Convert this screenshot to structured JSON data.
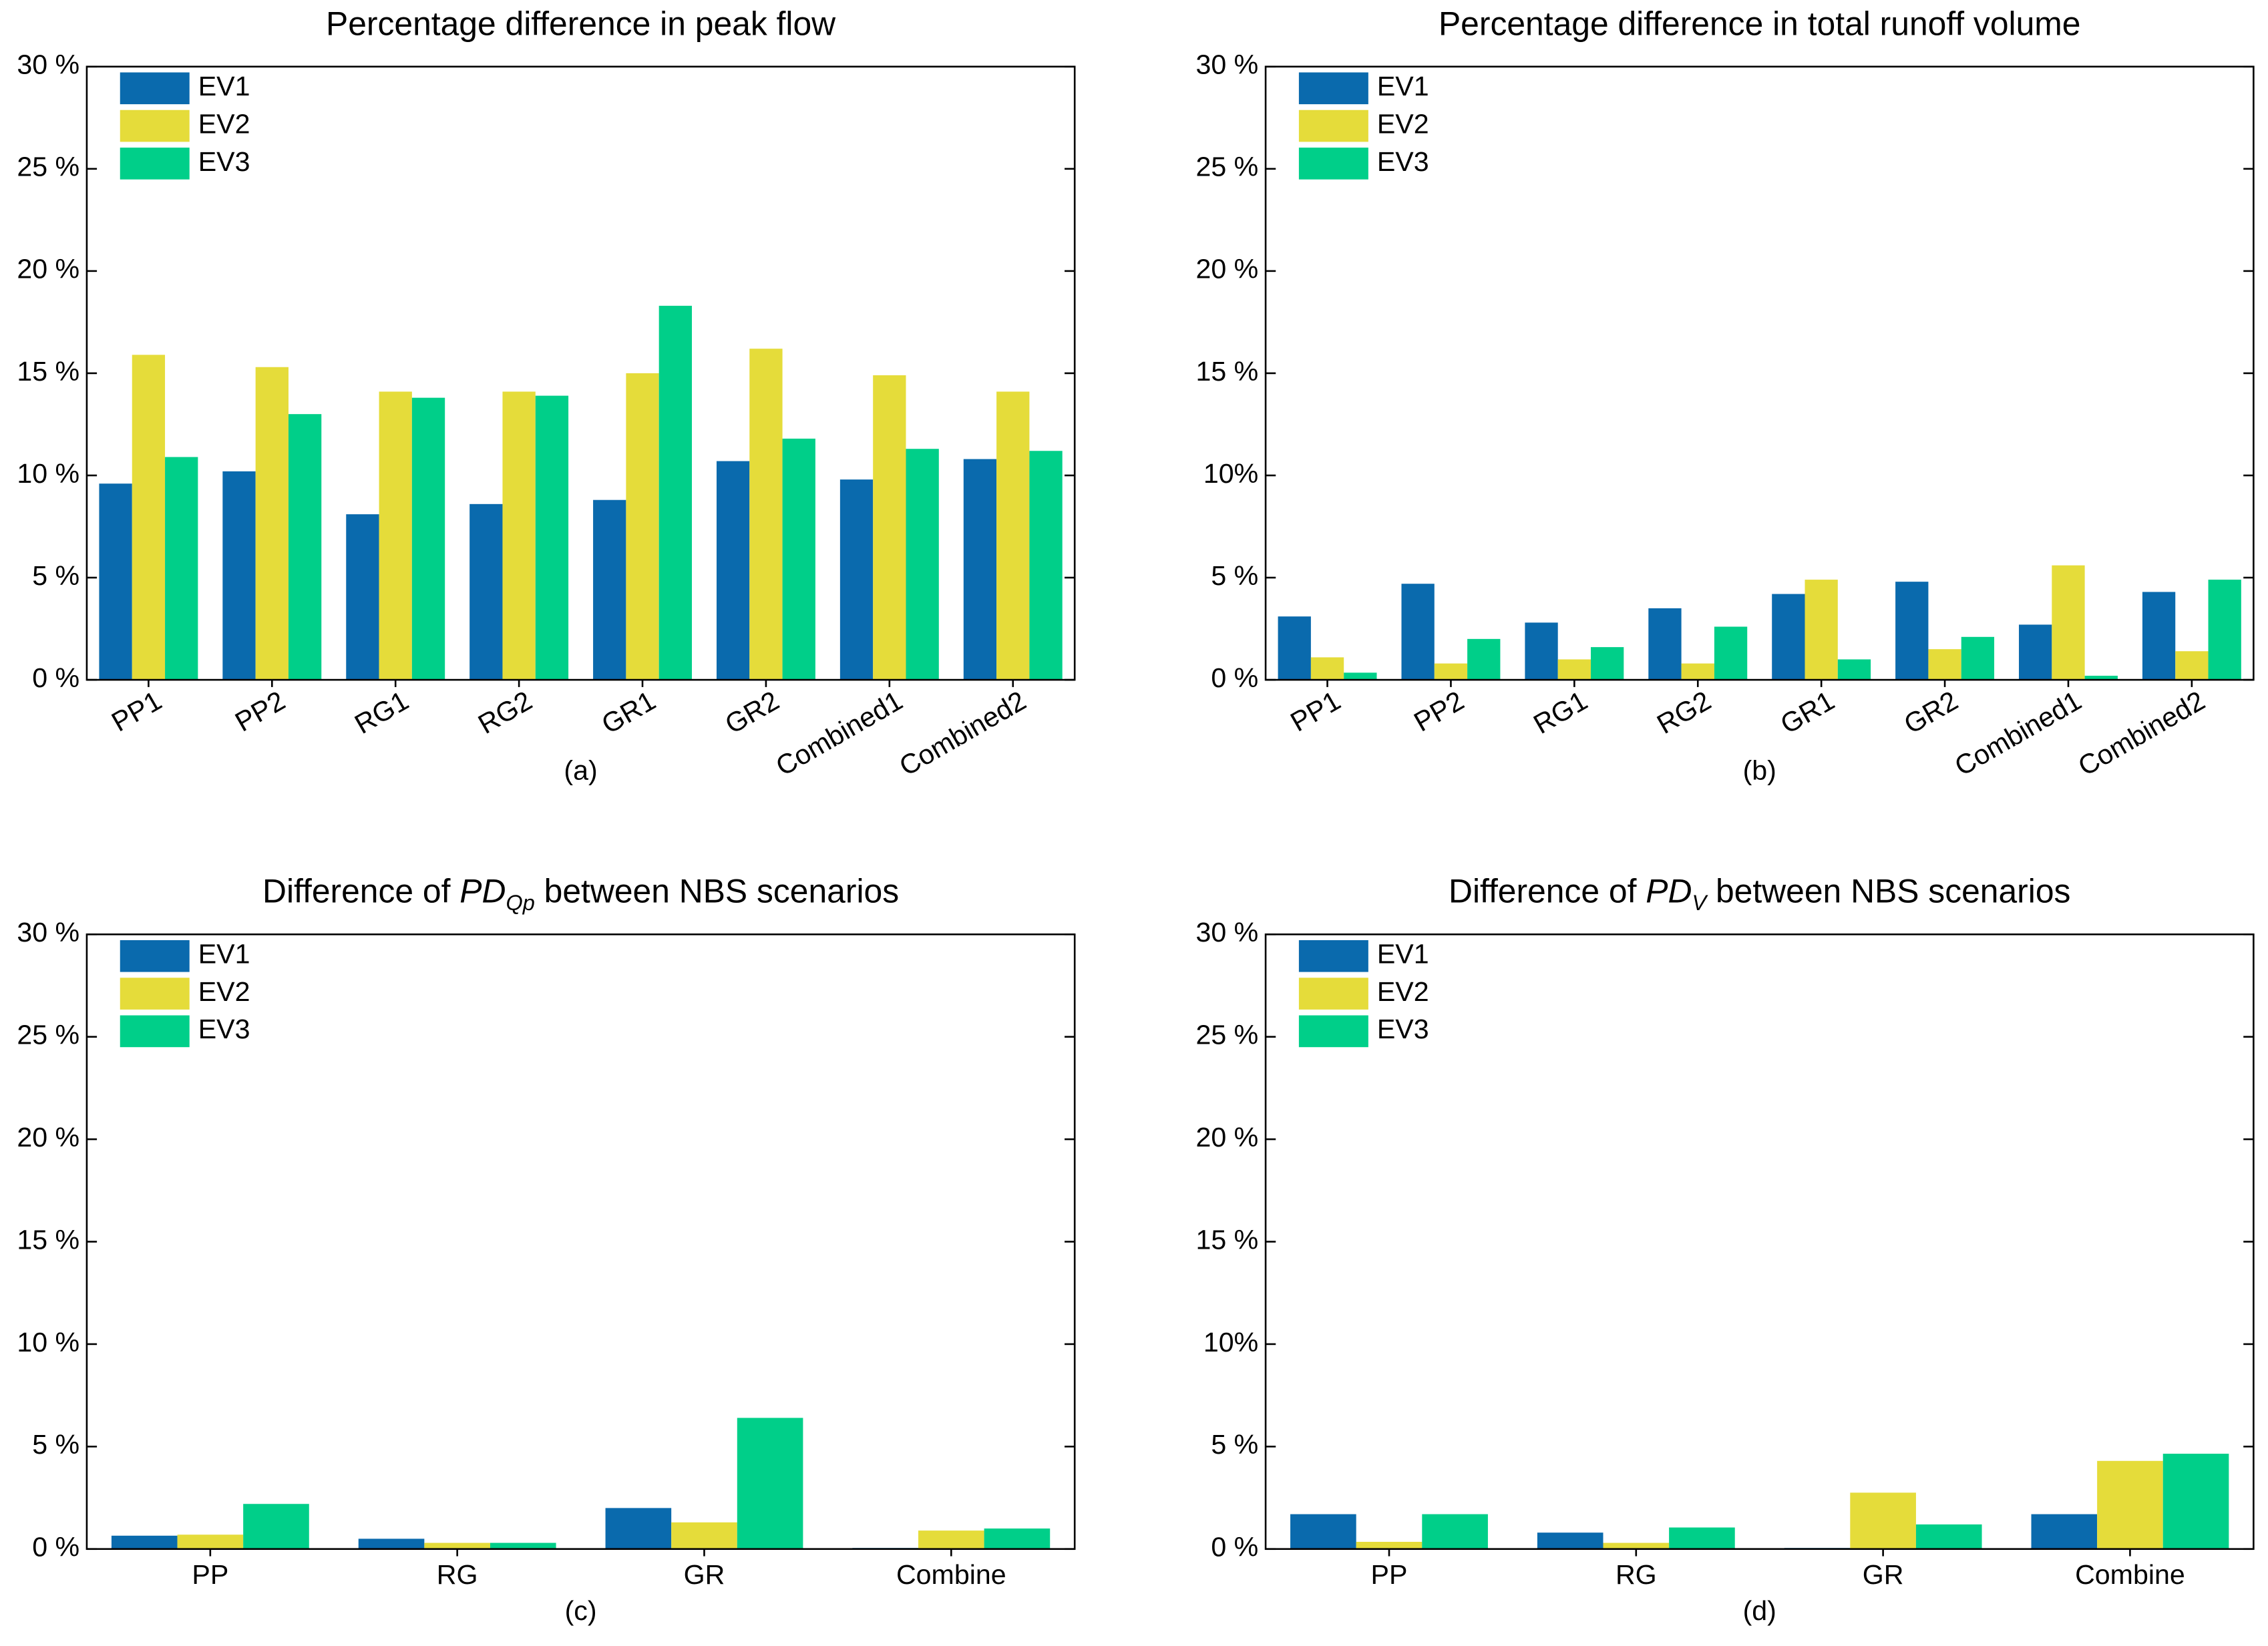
{
  "chart_data": [
    {
      "type": "bar",
      "title": "Percentage difference in peak flow",
      "xlabel": "(a)",
      "categories": [
        "PP1",
        "PP2",
        "RG1",
        "RG2",
        "GR1",
        "GR2",
        "Combined1",
        "Combined2"
      ],
      "series": [
        {
          "name": "EV1",
          "color": "#0a6aad",
          "values": [
            9.6,
            10.2,
            8.1,
            8.6,
            8.8,
            10.7,
            9.8,
            10.8
          ]
        },
        {
          "name": "EV2",
          "color": "#e5dc3a",
          "values": [
            15.9,
            15.3,
            14.1,
            14.1,
            15.0,
            16.2,
            14.9,
            14.1
          ]
        },
        {
          "name": "EV3",
          "color": "#00cf89",
          "values": [
            10.9,
            13.0,
            13.8,
            13.9,
            18.3,
            11.8,
            11.3,
            11.2
          ]
        }
      ],
      "ylim": [
        0,
        30
      ],
      "yticks": [
        {
          "value": 0,
          "label": "0 %"
        },
        {
          "value": 5,
          "label": "5 %"
        },
        {
          "value": 10,
          "label": "10 %"
        },
        {
          "value": 15,
          "label": "15 %"
        },
        {
          "value": 20,
          "label": "20 %"
        },
        {
          "value": 25,
          "label": "25 %"
        },
        {
          "value": 30,
          "label": "30 %"
        }
      ],
      "legend": "upper left"
    },
    {
      "type": "bar",
      "title": "Percentage difference in total runoff volume",
      "xlabel": "(b)",
      "categories": [
        "PP1",
        "PP2",
        "RG1",
        "RG2",
        "GR1",
        "GR2",
        "Combined1",
        "Combined2"
      ],
      "series": [
        {
          "name": "EV1",
          "color": "#0a6aad",
          "values": [
            3.1,
            4.7,
            2.8,
            3.5,
            4.2,
            4.8,
            2.7,
            4.3
          ]
        },
        {
          "name": "EV2",
          "color": "#e5dc3a",
          "values": [
            1.1,
            0.8,
            1.0,
            0.8,
            4.9,
            1.5,
            5.6,
            1.4
          ]
        },
        {
          "name": "EV3",
          "color": "#00cf89",
          "values": [
            0.35,
            2.0,
            1.6,
            2.6,
            1.0,
            2.1,
            0.2,
            4.9
          ]
        }
      ],
      "ylim": [
        0,
        30
      ],
      "yticks": [
        {
          "value": 0,
          "label": "0 %"
        },
        {
          "value": 5,
          "label": "5 %"
        },
        {
          "value": 10,
          "label": "10%"
        },
        {
          "value": 15,
          "label": "15 %"
        },
        {
          "value": 20,
          "label": "20 %"
        },
        {
          "value": 25,
          "label": "25 %"
        },
        {
          "value": 30,
          "label": "30 %"
        }
      ],
      "legend": "upper left"
    },
    {
      "type": "bar",
      "title": [
        "Difference of ",
        "PD",
        "Qp",
        " between NBS scenarios"
      ],
      "xlabel": "(c)",
      "categories": [
        "PP",
        "RG",
        "GR",
        "Combine"
      ],
      "series": [
        {
          "name": "EV1",
          "color": "#0a6aad",
          "values": [
            0.65,
            0.5,
            2.0,
            0.05
          ]
        },
        {
          "name": "EV2",
          "color": "#e5dc3a",
          "values": [
            0.7,
            0.3,
            1.3,
            0.9
          ]
        },
        {
          "name": "EV3",
          "color": "#00cf89",
          "values": [
            2.2,
            0.3,
            6.4,
            1.0
          ]
        }
      ],
      "ylim": [
        0,
        30
      ],
      "yticks": [
        {
          "value": 0,
          "label": "0 %"
        },
        {
          "value": 5,
          "label": "5 %"
        },
        {
          "value": 10,
          "label": "10 %"
        },
        {
          "value": 15,
          "label": "15 %"
        },
        {
          "value": 20,
          "label": "20 %"
        },
        {
          "value": 25,
          "label": "25 %"
        },
        {
          "value": 30,
          "label": "30 %"
        }
      ],
      "legend": "upper left"
    },
    {
      "type": "bar",
      "title": [
        "Difference of ",
        "PD",
        "V",
        " between NBS scenarios"
      ],
      "xlabel": "(d)",
      "categories": [
        "PP",
        "RG",
        "GR",
        "Combine"
      ],
      "series": [
        {
          "name": "EV1",
          "color": "#0a6aad",
          "values": [
            1.7,
            0.8,
            0.05,
            1.7
          ]
        },
        {
          "name": "EV2",
          "color": "#e5dc3a",
          "values": [
            0.35,
            0.3,
            2.75,
            4.3
          ]
        },
        {
          "name": "EV3",
          "color": "#00cf89",
          "values": [
            1.7,
            1.05,
            1.2,
            4.65
          ]
        }
      ],
      "ylim": [
        0,
        30
      ],
      "yticks": [
        {
          "value": 0,
          "label": "0 %"
        },
        {
          "value": 5,
          "label": "5 %"
        },
        {
          "value": 10,
          "label": "10%"
        },
        {
          "value": 15,
          "label": "15 %"
        },
        {
          "value": 20,
          "label": "20 %"
        },
        {
          "value": 25,
          "label": "25 %"
        },
        {
          "value": 30,
          "label": "30 %"
        }
      ],
      "legend": "upper left"
    }
  ]
}
